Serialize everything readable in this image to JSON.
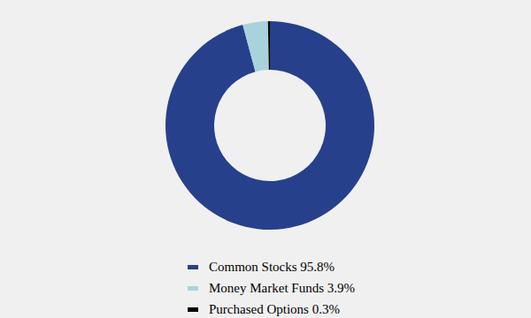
{
  "chart_data": {
    "type": "pie",
    "categories": [
      "Common Stocks",
      "Money Market Funds",
      "Purchased Options"
    ],
    "values": [
      95.8,
      3.9,
      0.3
    ],
    "value_labels": [
      "95.8%",
      "3.9%",
      "0.3%"
    ],
    "colors": [
      "#27408b",
      "#a8d3da",
      "#000000"
    ],
    "legend": "bottom",
    "donut": true
  }
}
